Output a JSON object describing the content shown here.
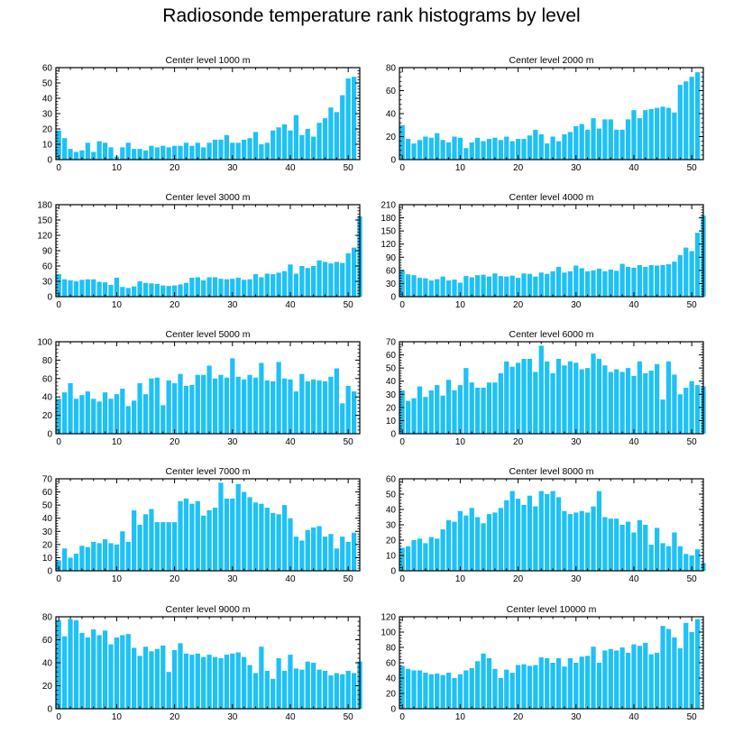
{
  "title": "Radiosonde temperature rank histograms by level",
  "bar_color": "#1ec1f5",
  "chart_data": [
    {
      "type": "bar",
      "title": "Center level 1000 m",
      "xlim": [
        -0.5,
        52
      ],
      "ylim": [
        0,
        60
      ],
      "xticks": [
        0,
        10,
        20,
        30,
        40,
        50
      ],
      "yticks": [
        0,
        10,
        20,
        30,
        40,
        50,
        60
      ],
      "values": [
        19,
        14,
        7,
        5,
        6,
        11,
        5,
        12,
        11,
        8,
        2,
        8,
        11,
        7,
        7,
        6,
        9,
        8,
        9,
        8,
        9,
        9,
        11,
        9,
        11,
        8,
        11,
        13,
        13,
        16,
        11,
        11,
        13,
        14,
        18,
        10,
        11,
        19,
        21,
        23,
        19,
        29,
        16,
        20,
        15,
        24,
        27,
        34,
        31,
        42,
        53,
        54
      ]
    },
    {
      "type": "bar",
      "title": "Center level 2000 m",
      "xlim": [
        -0.5,
        52
      ],
      "ylim": [
        0,
        80
      ],
      "xticks": [
        0,
        10,
        20,
        30,
        40,
        50
      ],
      "yticks": [
        0,
        20,
        40,
        60,
        80
      ],
      "values": [
        30,
        18,
        14,
        17,
        20,
        19,
        23,
        17,
        15,
        20,
        19,
        10,
        15,
        19,
        16,
        18,
        19,
        17,
        20,
        16,
        18,
        18,
        21,
        26,
        22,
        14,
        20,
        16,
        22,
        24,
        29,
        31,
        26,
        36,
        27,
        35,
        35,
        26,
        26,
        35,
        43,
        36,
        43,
        44,
        45,
        46,
        45,
        41,
        65,
        68,
        72,
        76
      ]
    },
    {
      "type": "bar",
      "title": "Center level 3000 m",
      "xlim": [
        -0.5,
        52
      ],
      "ylim": [
        0,
        180
      ],
      "xticks": [
        0,
        10,
        20,
        30,
        40,
        50
      ],
      "yticks": [
        0,
        30,
        60,
        90,
        120,
        150,
        180
      ],
      "values": [
        44,
        34,
        32,
        30,
        33,
        34,
        34,
        29,
        28,
        23,
        37,
        19,
        17,
        20,
        30,
        27,
        26,
        25,
        22,
        21,
        22,
        24,
        27,
        37,
        38,
        32,
        38,
        38,
        35,
        34,
        35,
        37,
        33,
        34,
        44,
        38,
        45,
        44,
        47,
        50,
        63,
        45,
        60,
        56,
        60,
        71,
        68,
        65,
        68,
        66,
        85,
        96,
        157
      ]
    },
    {
      "type": "bar",
      "title": "Center level 4000 m",
      "xlim": [
        -0.5,
        52
      ],
      "ylim": [
        0,
        210
      ],
      "xticks": [
        0,
        10,
        20,
        30,
        40,
        50
      ],
      "yticks": [
        0,
        30,
        60,
        90,
        120,
        150,
        180,
        210
      ],
      "values": [
        60,
        51,
        49,
        43,
        42,
        37,
        40,
        46,
        37,
        39,
        32,
        47,
        44,
        49,
        50,
        46,
        53,
        47,
        46,
        48,
        43,
        53,
        52,
        46,
        55,
        52,
        58,
        68,
        55,
        58,
        71,
        65,
        58,
        60,
        64,
        58,
        62,
        59,
        75,
        68,
        66,
        72,
        68,
        72,
        71,
        72,
        74,
        80,
        95,
        112,
        104,
        146,
        185
      ]
    },
    {
      "type": "bar",
      "title": "Center level 5000 m",
      "xlim": [
        -0.5,
        52
      ],
      "ylim": [
        0,
        100
      ],
      "xticks": [
        0,
        10,
        20,
        30,
        40,
        50
      ],
      "yticks": [
        0,
        20,
        40,
        60,
        80,
        100
      ],
      "values": [
        38,
        45,
        55,
        38,
        42,
        46,
        38,
        35,
        45,
        38,
        43,
        49,
        30,
        36,
        55,
        43,
        60,
        61,
        31,
        58,
        55,
        65,
        52,
        53,
        64,
        64,
        74,
        60,
        64,
        61,
        82,
        62,
        59,
        64,
        61,
        77,
        58,
        57,
        78,
        60,
        59,
        46,
        65,
        57,
        59,
        58,
        57,
        62,
        71,
        33,
        52,
        46
      ]
    },
    {
      "type": "bar",
      "title": "Center level 6000 m",
      "xlim": [
        -0.5,
        52
      ],
      "ylim": [
        0,
        70
      ],
      "xticks": [
        0,
        10,
        20,
        30,
        40,
        50
      ],
      "yticks": [
        0,
        10,
        20,
        30,
        40,
        50,
        60,
        70
      ],
      "values": [
        33,
        25,
        27,
        36,
        28,
        33,
        37,
        29,
        41,
        33,
        37,
        50,
        39,
        35,
        35,
        39,
        39,
        46,
        55,
        51,
        54,
        57,
        57,
        47,
        67,
        55,
        46,
        57,
        52,
        55,
        54,
        49,
        50,
        61,
        57,
        52,
        47,
        49,
        47,
        50,
        44,
        55,
        46,
        48,
        53,
        26,
        55,
        45,
        30,
        35,
        40,
        37,
        36
      ]
    },
    {
      "type": "bar",
      "title": "Center level 7000 m",
      "xlim": [
        -0.5,
        52
      ],
      "ylim": [
        0,
        70
      ],
      "xticks": [
        0,
        10,
        20,
        30,
        40,
        50
      ],
      "yticks": [
        0,
        10,
        20,
        30,
        40,
        50,
        60,
        70
      ],
      "values": [
        8,
        17,
        10,
        13,
        19,
        18,
        22,
        21,
        24,
        21,
        20,
        30,
        22,
        46,
        35,
        43,
        47,
        37,
        37,
        37,
        37,
        53,
        55,
        51,
        53,
        42,
        46,
        48,
        67,
        55,
        55,
        66,
        60,
        56,
        52,
        51,
        48,
        44,
        43,
        50,
        40,
        26,
        23,
        31,
        33,
        34,
        26,
        28,
        17,
        26,
        22,
        29
      ]
    },
    {
      "type": "bar",
      "title": "Center level 8000 m",
      "xlim": [
        -0.5,
        52
      ],
      "ylim": [
        0,
        60
      ],
      "xticks": [
        0,
        10,
        20,
        30,
        40,
        50
      ],
      "yticks": [
        0,
        10,
        20,
        30,
        40,
        50,
        60
      ],
      "values": [
        15,
        16,
        20,
        21,
        18,
        22,
        21,
        27,
        33,
        32,
        39,
        36,
        41,
        35,
        31,
        37,
        38,
        41,
        46,
        52,
        47,
        43,
        49,
        42,
        52,
        50,
        52,
        48,
        39,
        37,
        38,
        39,
        38,
        42,
        52,
        35,
        34,
        34,
        30,
        32,
        25,
        33,
        30,
        17,
        28,
        18,
        16,
        25,
        16,
        11,
        10,
        14,
        5
      ]
    },
    {
      "type": "bar",
      "title": "Center level 9000 m",
      "xlim": [
        -0.5,
        52
      ],
      "ylim": [
        0,
        80
      ],
      "xticks": [
        0,
        10,
        20,
        30,
        40,
        50
      ],
      "yticks": [
        0,
        20,
        40,
        60,
        80
      ],
      "values": [
        77,
        63,
        78,
        77,
        66,
        62,
        69,
        64,
        68,
        56,
        62,
        64,
        65,
        53,
        46,
        54,
        50,
        52,
        55,
        32,
        51,
        57,
        48,
        47,
        48,
        45,
        47,
        45,
        44,
        47,
        48,
        49,
        45,
        38,
        31,
        54,
        33,
        26,
        44,
        33,
        47,
        35,
        34,
        41,
        40,
        34,
        33,
        29,
        31,
        30,
        33,
        31,
        41
      ]
    },
    {
      "type": "bar",
      "title": "Center level 10000 m",
      "xlim": [
        -0.5,
        52
      ],
      "ylim": [
        0,
        120
      ],
      "xticks": [
        0,
        10,
        20,
        30,
        40,
        50
      ],
      "yticks": [
        0,
        20,
        40,
        60,
        80,
        100,
        120
      ],
      "values": [
        56,
        52,
        50,
        50,
        47,
        45,
        46,
        44,
        47,
        40,
        45,
        50,
        53,
        62,
        72,
        66,
        52,
        40,
        51,
        47,
        57,
        58,
        56,
        57,
        67,
        66,
        60,
        66,
        55,
        66,
        60,
        68,
        69,
        81,
        60,
        76,
        78,
        76,
        80,
        73,
        84,
        82,
        86,
        71,
        73,
        108,
        104,
        93,
        79,
        112,
        100,
        117
      ]
    }
  ]
}
